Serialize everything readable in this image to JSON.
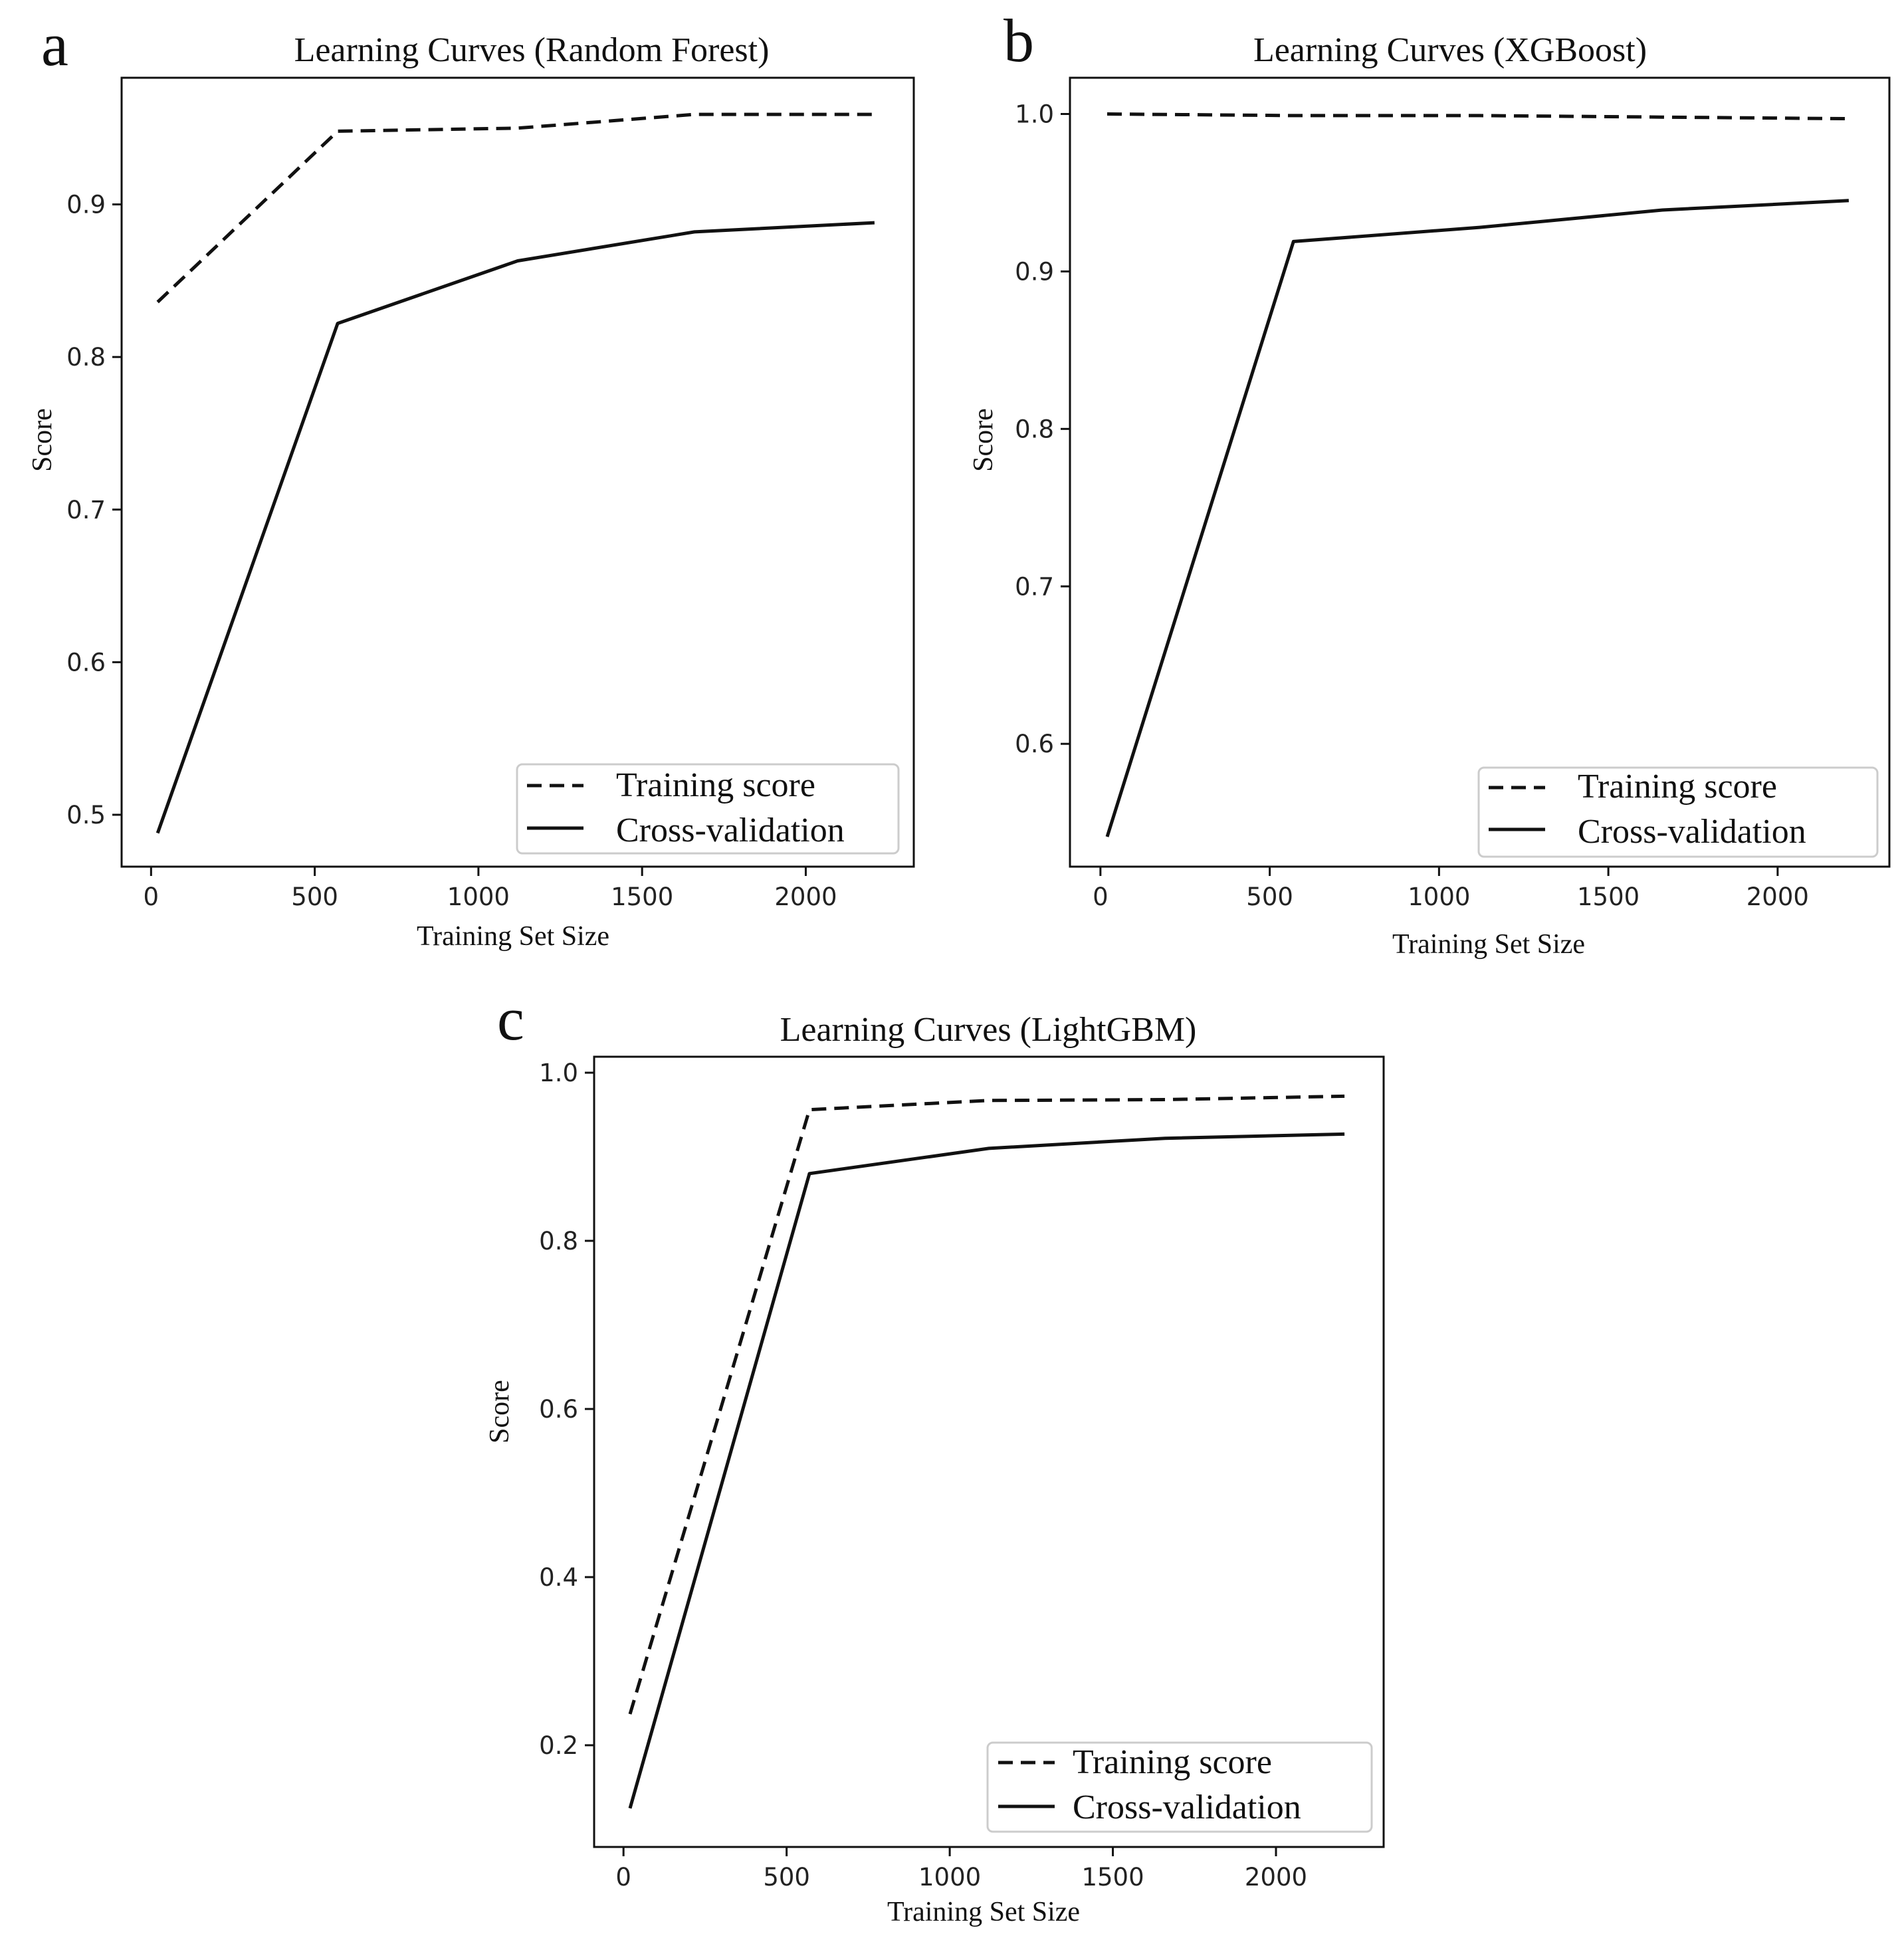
{
  "chart_data": [
    {
      "panel": "a",
      "type": "line",
      "title": "Learning Curves (Random Forest)",
      "xlabel": "Training Set Size",
      "ylabel": "Score",
      "xlim": [
        -90,
        2330
      ],
      "ylim": [
        0.466,
        0.983
      ],
      "xticks": [
        0,
        500,
        1000,
        1500,
        2000
      ],
      "yticks": [
        0.5,
        0.6,
        0.7,
        0.8,
        0.9
      ],
      "ytick_labels": [
        "0.5",
        "0.6",
        "0.7",
        "0.8",
        "0.9"
      ],
      "grid": false,
      "legend": "lower-right",
      "x": [
        20,
        570,
        1120,
        1660,
        2210
      ],
      "series": [
        {
          "name": "Training score",
          "style": "dashed",
          "values": [
            0.836,
            0.948,
            0.95,
            0.959,
            0.959
          ]
        },
        {
          "name": "Cross-validation",
          "style": "solid",
          "values": [
            0.488,
            0.822,
            0.863,
            0.882,
            0.888
          ]
        }
      ]
    },
    {
      "panel": "b",
      "type": "line",
      "title": "Learning Curves (XGBoost)",
      "xlabel": "Training Set Size",
      "ylabel": "Score",
      "xlim": [
        -90,
        2330
      ],
      "ylim": [
        0.522,
        1.023
      ],
      "xticks": [
        0,
        500,
        1000,
        1500,
        2000
      ],
      "yticks": [
        0.6,
        0.7,
        0.8,
        0.9,
        1.0
      ],
      "ytick_labels": [
        "0.6",
        "0.7",
        "0.8",
        "0.9",
        "1.0"
      ],
      "grid": false,
      "legend": "lower-right",
      "x": [
        20,
        570,
        1120,
        1660,
        2210
      ],
      "series": [
        {
          "name": "Training score",
          "style": "dashed",
          "values": [
            1.0,
            0.999,
            0.999,
            0.998,
            0.997
          ]
        },
        {
          "name": "Cross-validation",
          "style": "solid",
          "values": [
            0.541,
            0.919,
            0.928,
            0.939,
            0.945
          ]
        }
      ]
    },
    {
      "panel": "c",
      "type": "line",
      "title": "Learning Curves (LightGBM)",
      "xlabel": "Training Set Size",
      "ylabel": "Score",
      "xlim": [
        -90,
        2330
      ],
      "ylim": [
        0.079,
        1.019
      ],
      "xticks": [
        0,
        500,
        1000,
        1500,
        2000
      ],
      "yticks": [
        0.2,
        0.4,
        0.6,
        0.8,
        1.0
      ],
      "ytick_labels": [
        "0.2",
        "0.4",
        "0.6",
        "0.8",
        "1.0"
      ],
      "grid": false,
      "legend": "lower-right",
      "x": [
        20,
        570,
        1120,
        1660,
        2210
      ],
      "series": [
        {
          "name": "Training score",
          "style": "dashed",
          "values": [
            0.237,
            0.956,
            0.967,
            0.968,
            0.972
          ]
        },
        {
          "name": "Cross-validation",
          "style": "solid",
          "values": [
            0.125,
            0.88,
            0.91,
            0.922,
            0.927
          ]
        }
      ]
    }
  ]
}
